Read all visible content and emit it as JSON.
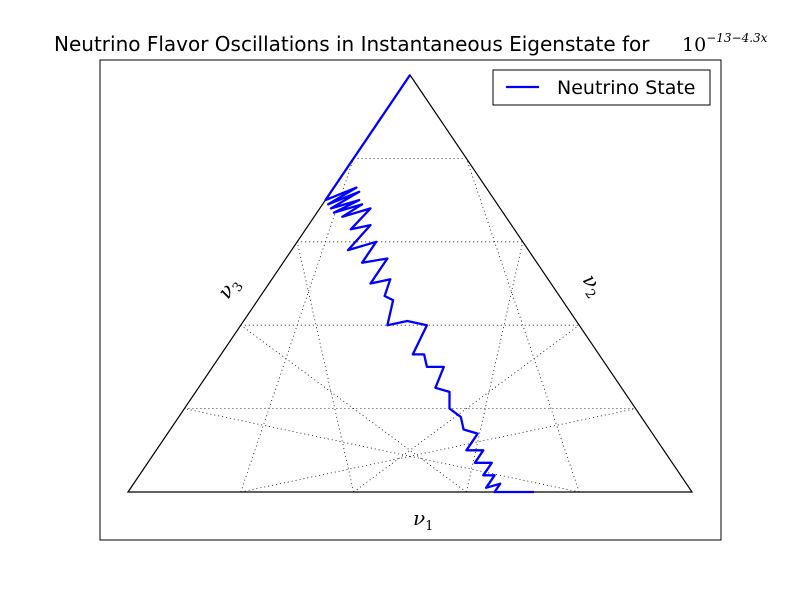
{
  "chart_data": {
    "type": "ternary-line",
    "title": "Neutrino Flavor Oscillations in Instantaneous Eigenstate for",
    "title_math": {
      "base": "10",
      "exponent": "−13−4.3x"
    },
    "axis_labels": {
      "bottom": {
        "symbol": "ν",
        "sub": "1"
      },
      "left": {
        "symbol": "ν",
        "sub": "3"
      },
      "right": {
        "symbol": "ν",
        "sub": "2"
      }
    },
    "grid": {
      "on": true,
      "style": "dotted",
      "divisions": 5
    },
    "legend": {
      "position": "top-right",
      "entries": [
        {
          "label": "Neutrino State",
          "color": "#0000ff"
        }
      ]
    },
    "series": [
      {
        "name": "Neutrino State",
        "color": "#0000ff",
        "note": "composition points (nu1, nu2, nu3) sampled along the trajectory",
        "points": [
          [
            0.0,
            1.0,
            0.0
          ],
          [
            0.0,
            0.9,
            0.1
          ],
          [
            0.0,
            0.8,
            0.2
          ],
          [
            0.0,
            0.74,
            0.26
          ],
          [
            0.0,
            0.7,
            0.3
          ],
          [
            0.04,
            0.73,
            0.23
          ],
          [
            0.01,
            0.69,
            0.3
          ],
          [
            0.05,
            0.72,
            0.23
          ],
          [
            0.02,
            0.68,
            0.3
          ],
          [
            0.06,
            0.7,
            0.24
          ],
          [
            0.03,
            0.67,
            0.3
          ],
          [
            0.07,
            0.69,
            0.24
          ],
          [
            0.05,
            0.66,
            0.29
          ],
          [
            0.09,
            0.68,
            0.23
          ],
          [
            0.08,
            0.63,
            0.29
          ],
          [
            0.11,
            0.64,
            0.25
          ],
          [
            0.1,
            0.58,
            0.32
          ],
          [
            0.14,
            0.6,
            0.26
          ],
          [
            0.14,
            0.55,
            0.31
          ],
          [
            0.18,
            0.56,
            0.26
          ],
          [
            0.18,
            0.5,
            0.32
          ],
          [
            0.21,
            0.51,
            0.28
          ],
          [
            0.22,
            0.47,
            0.31
          ],
          [
            0.24,
            0.46,
            0.3
          ],
          [
            0.26,
            0.4,
            0.34
          ],
          [
            0.29,
            0.41,
            0.3
          ],
          [
            0.33,
            0.4,
            0.27
          ],
          [
            0.34,
            0.33,
            0.33
          ],
          [
            0.36,
            0.33,
            0.31
          ],
          [
            0.38,
            0.3,
            0.32
          ],
          [
            0.41,
            0.3,
            0.29
          ],
          [
            0.42,
            0.25,
            0.33
          ],
          [
            0.45,
            0.24,
            0.31
          ],
          [
            0.47,
            0.2,
            0.33
          ],
          [
            0.5,
            0.18,
            0.32
          ],
          [
            0.52,
            0.15,
            0.33
          ],
          [
            0.55,
            0.14,
            0.31
          ],
          [
            0.55,
            0.1,
            0.35
          ],
          [
            0.58,
            0.1,
            0.32
          ],
          [
            0.58,
            0.07,
            0.35
          ],
          [
            0.61,
            0.07,
            0.32
          ],
          [
            0.61,
            0.04,
            0.35
          ],
          [
            0.63,
            0.04,
            0.33
          ],
          [
            0.63,
            0.01,
            0.36
          ],
          [
            0.65,
            0.02,
            0.33
          ],
          [
            0.65,
            0.0,
            0.35
          ],
          [
            0.72,
            0.0,
            0.28
          ]
        ]
      }
    ]
  }
}
